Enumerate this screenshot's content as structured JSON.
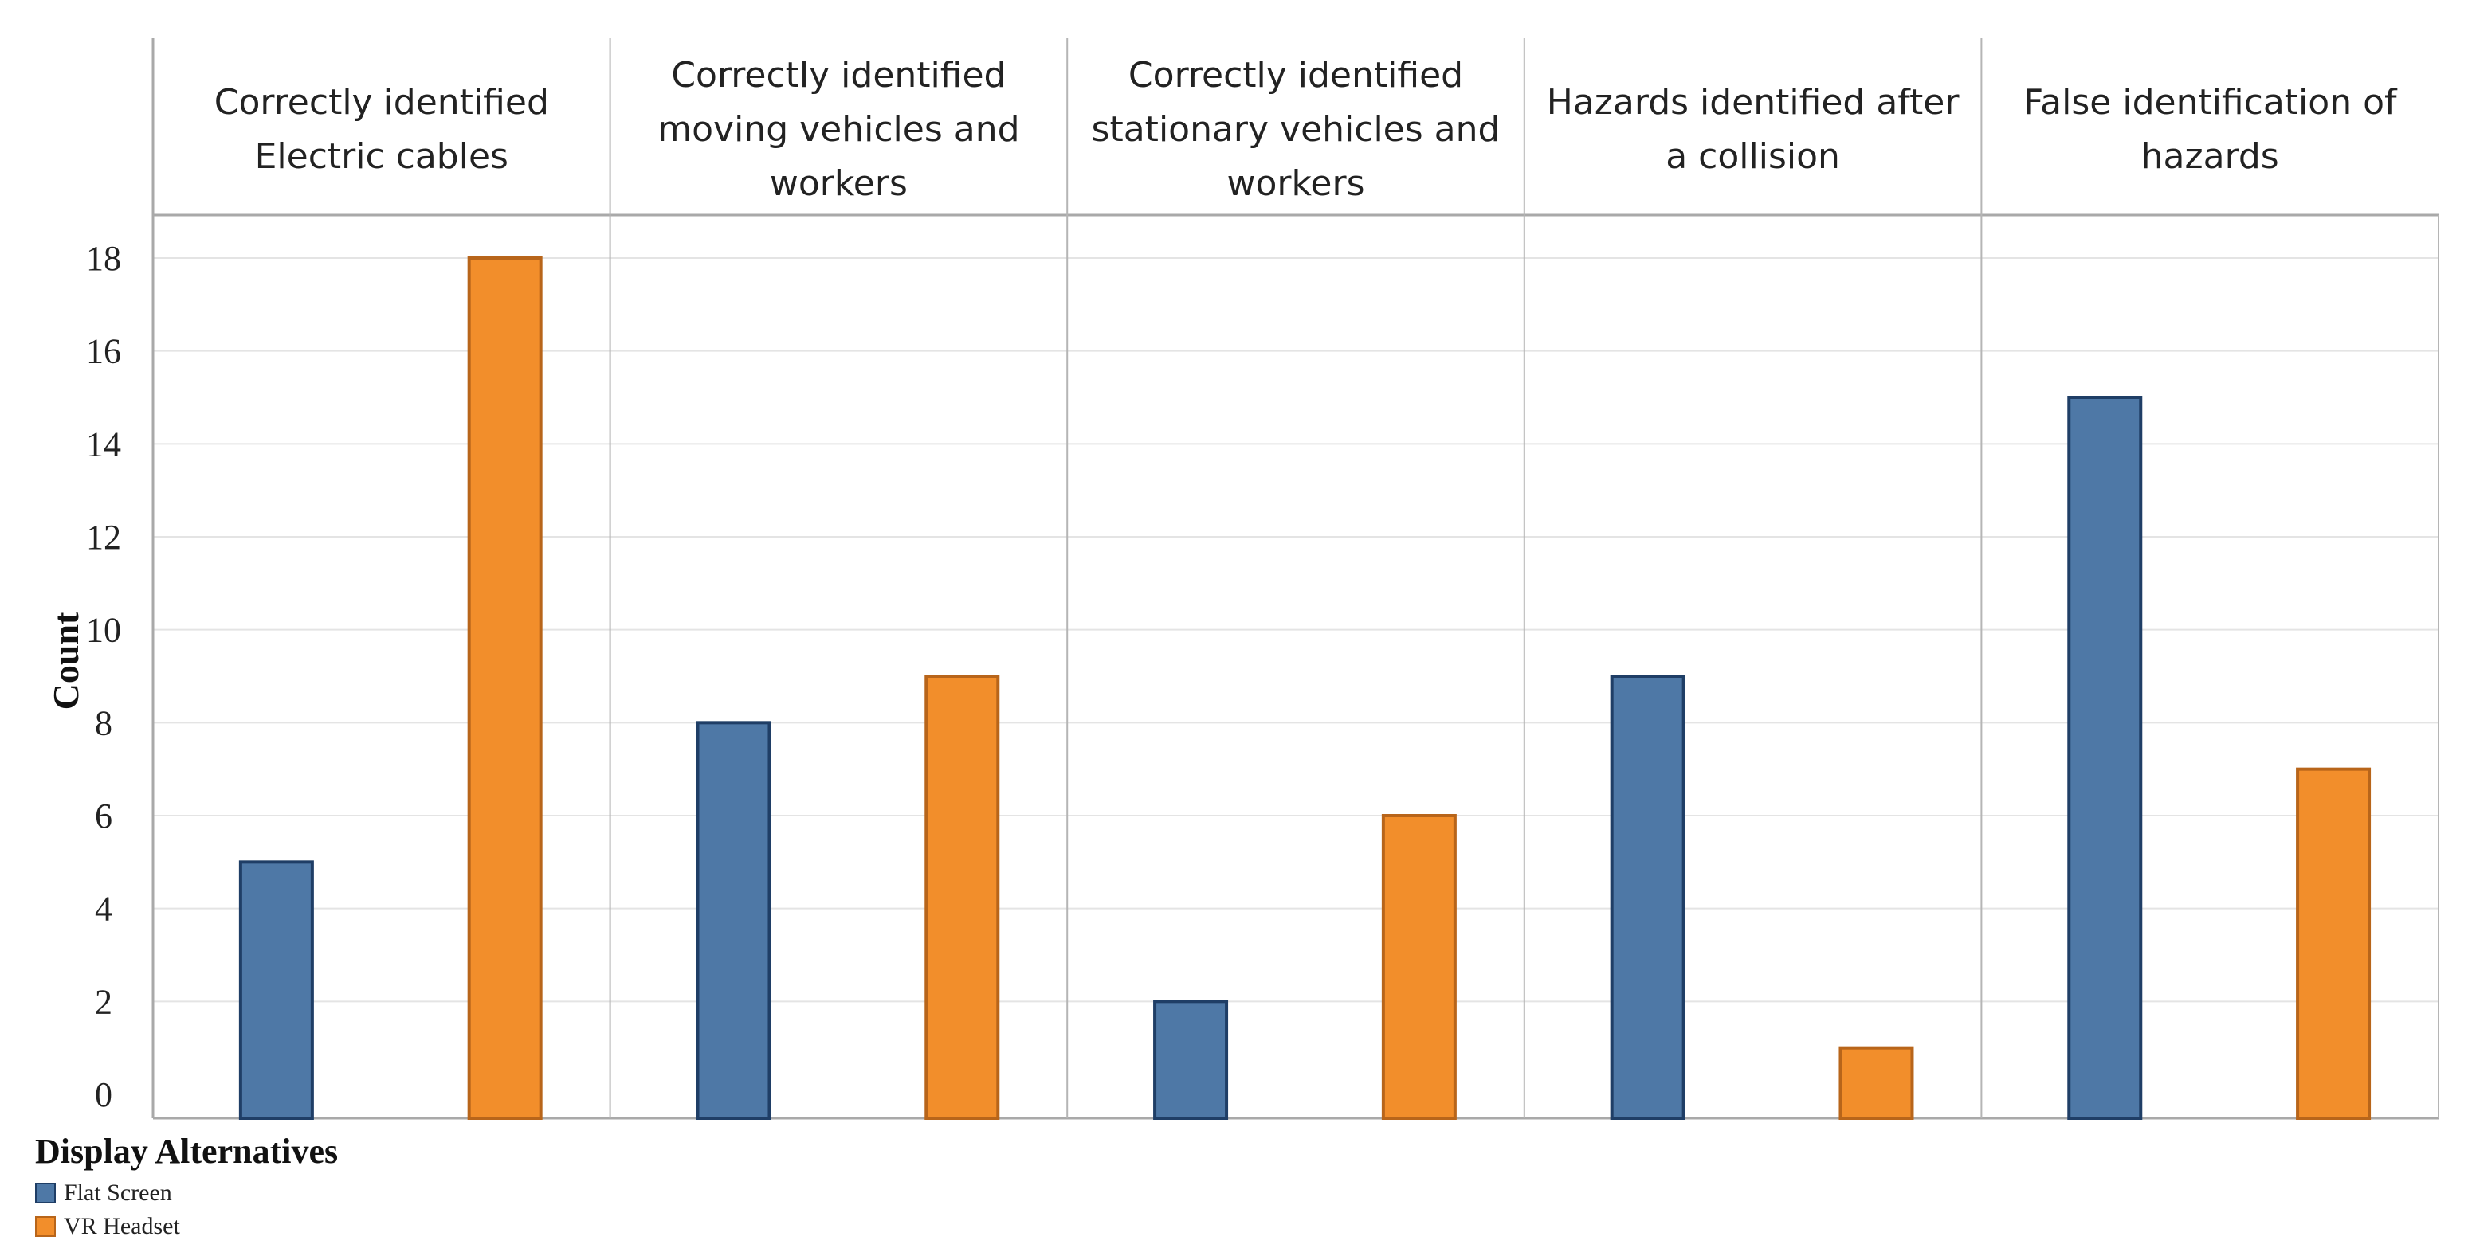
{
  "chart_data": {
    "type": "bar",
    "categories": [
      "Correctly identified Electric cables",
      "Correctly identified moving vehicles and workers",
      "Correctly identified stationary vehicles and workers",
      "Hazards identified after a collision",
      "False identification of hazards"
    ],
    "category_lines": [
      [
        "Correctly identified",
        "Electric cables"
      ],
      [
        "Correctly identified",
        "moving vehicles and",
        "workers"
      ],
      [
        "Correctly identified",
        "stationary vehicles and",
        "workers"
      ],
      [
        "Hazards identified after",
        "a collision"
      ],
      [
        "False identification of",
        "hazards"
      ]
    ],
    "series": [
      {
        "name": "Flat Screen",
        "values": [
          5,
          8,
          2,
          9,
          15
        ],
        "color": "#4e78a6",
        "border": "#1f3e66"
      },
      {
        "name": "VR Headset",
        "values": [
          18,
          9,
          6,
          1,
          7
        ],
        "color": "#f28e2b",
        "border": "#b8651a"
      }
    ],
    "ylabel": "Count",
    "ylim": [
      0,
      18
    ],
    "yticks": [
      0,
      2,
      4,
      6,
      8,
      10,
      12,
      14,
      16,
      18
    ],
    "grid": true,
    "legend": {
      "title": "Display Alternatives",
      "position": "bottom-left"
    }
  }
}
